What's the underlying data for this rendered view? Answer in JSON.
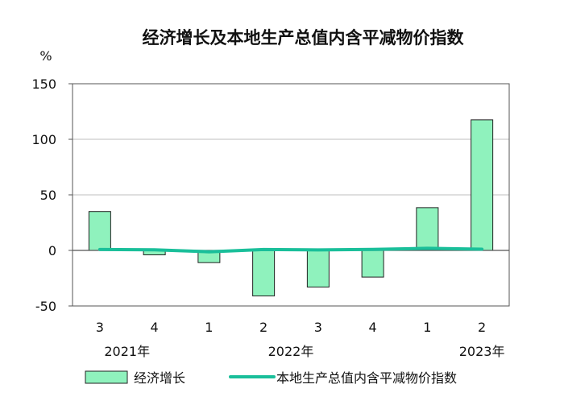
{
  "chart_data": {
    "type": "bar",
    "title": "经济增长及本地生产总值内含平减物价指数",
    "ylabel": "%",
    "xlabel": "",
    "ylim": [
      -50,
      150
    ],
    "yticks": [
      -50,
      0,
      50,
      100,
      150
    ],
    "grid": true,
    "legend_position": "bottom",
    "categories": [
      "3",
      "4",
      "1",
      "2",
      "3",
      "4",
      "1",
      "2"
    ],
    "year_labels": [
      {
        "label": "2021年",
        "category_index": 0.5
      },
      {
        "label": "2022年",
        "category_index": 3.5
      },
      {
        "label": "2023年",
        "category_index": 7
      }
    ],
    "series": [
      {
        "name": "经济增长",
        "type": "bar",
        "color": "#8ff2bd",
        "values": [
          35,
          -4,
          -11,
          -41,
          -33,
          -24,
          38.5,
          117.5
        ]
      },
      {
        "name": "本地生产总值内含平减物价指数",
        "type": "line",
        "color": "#1abf9a",
        "values": [
          0.8,
          0.6,
          -1.2,
          0.8,
          0.4,
          0.9,
          1.9,
          1.1
        ]
      }
    ]
  }
}
